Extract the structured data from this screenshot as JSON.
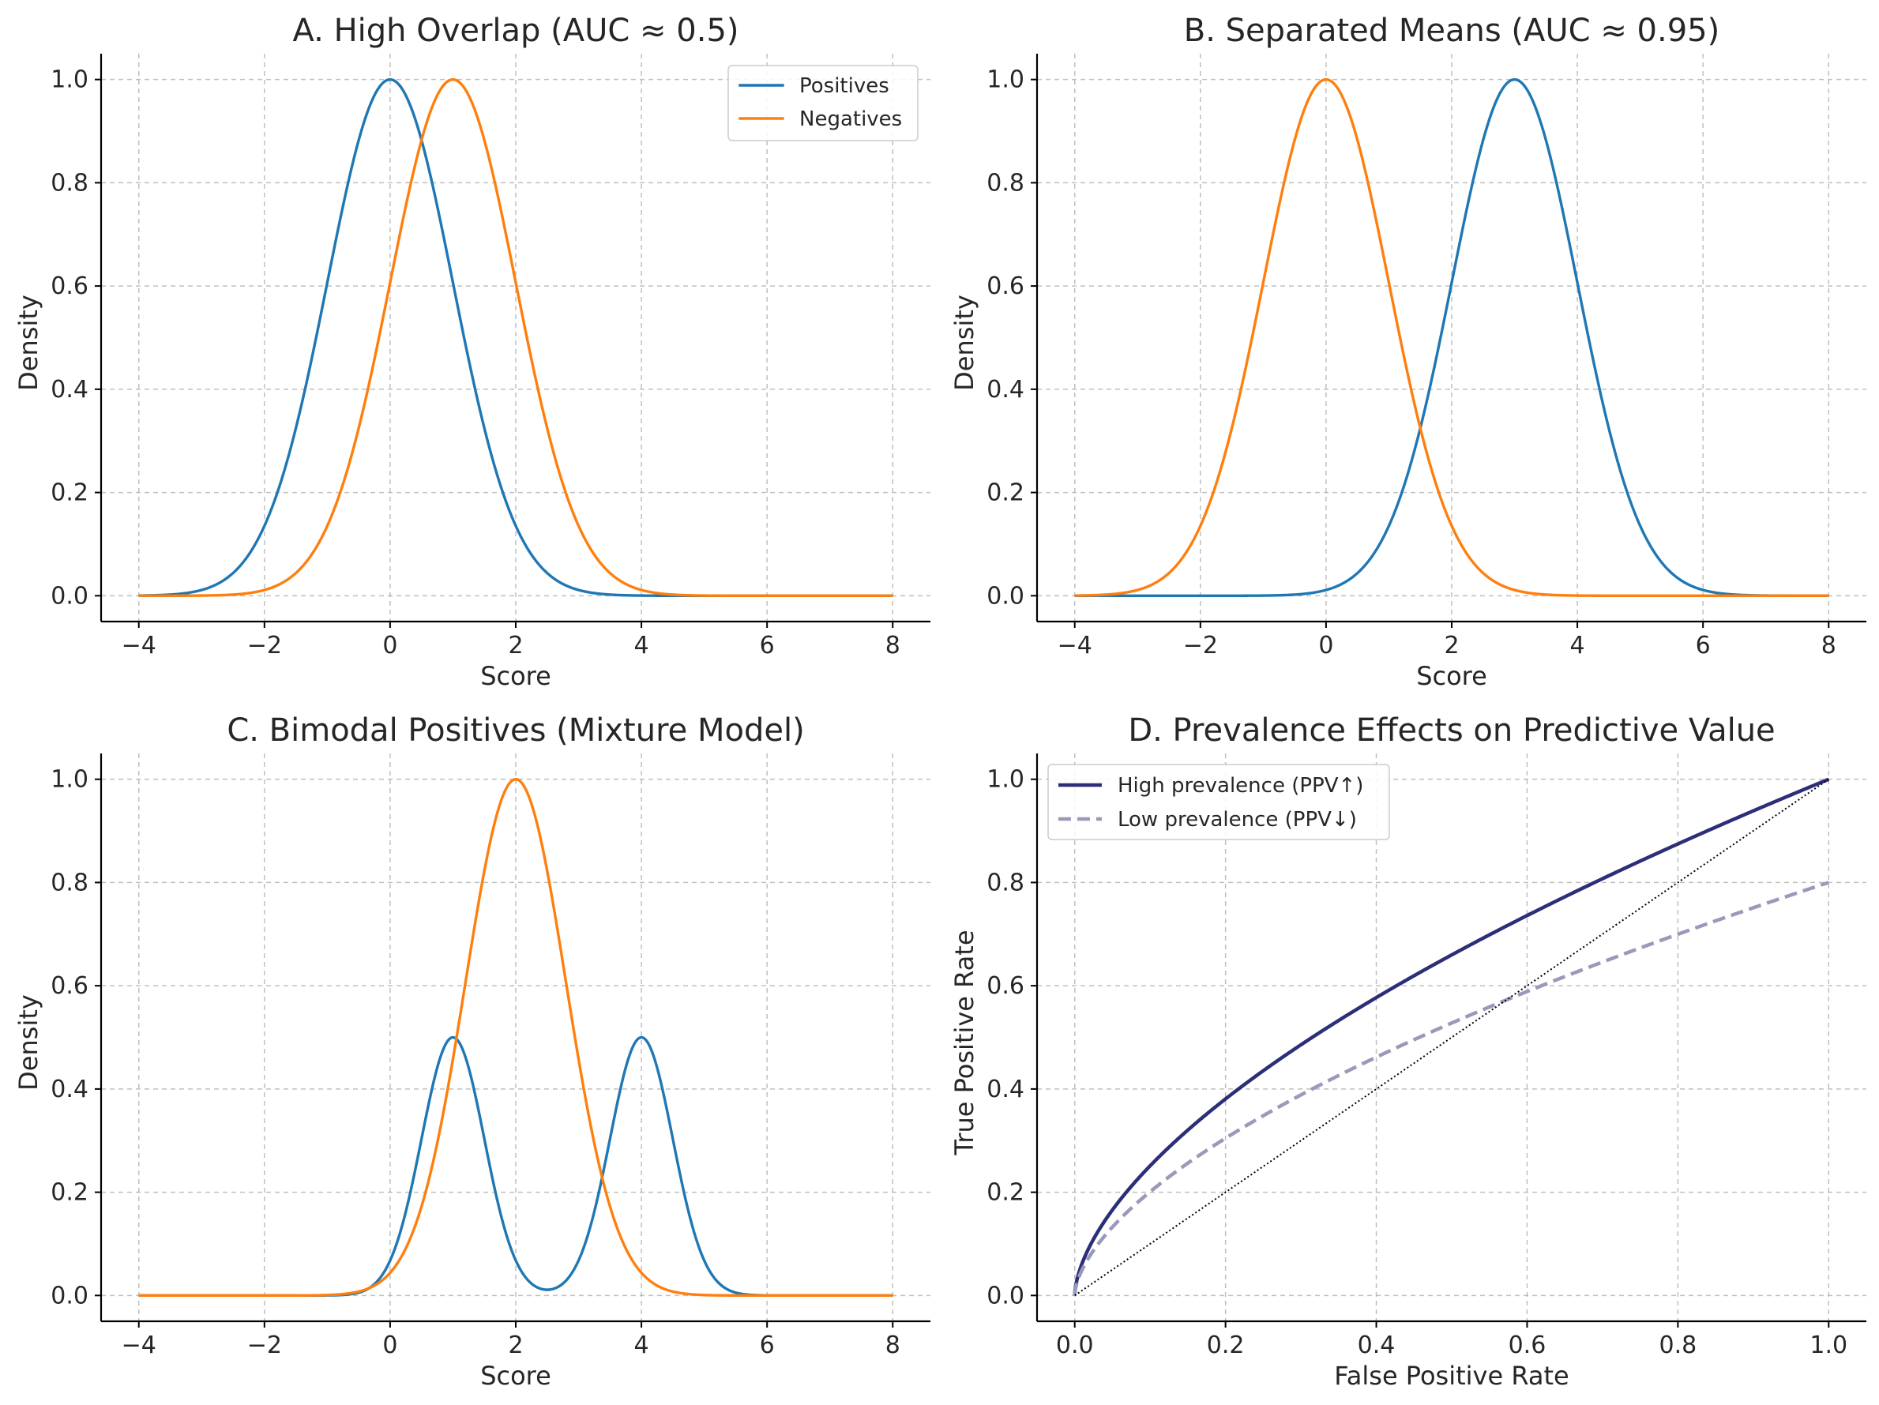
{
  "colors": {
    "positives": "#1f77b4",
    "negatives": "#ff7f0e",
    "high_prev": "#2c2f78",
    "low_prev": "#9b99bb",
    "diagonal": "#000000"
  },
  "chart_data": [
    {
      "id": "A",
      "type": "line",
      "title": "A. High Overlap (AUC ≈ 0.5)",
      "xlabel": "Score",
      "ylabel": "Density",
      "xlim": [
        -4.6,
        8.6
      ],
      "ylim": [
        -0.05,
        1.05
      ],
      "xticks": [
        -4,
        -2,
        0,
        2,
        4,
        6,
        8
      ],
      "xtick_labels": [
        "−4",
        "−2",
        "0",
        "2",
        "4",
        "6",
        "8"
      ],
      "yticks": [
        0.0,
        0.2,
        0.4,
        0.6,
        0.8,
        1.0
      ],
      "ytick_labels": [
        "0.0",
        "0.2",
        "0.4",
        "0.6",
        "0.8",
        "1.0"
      ],
      "grid": true,
      "legend": "top-right",
      "x_range": [
        -4,
        8
      ],
      "series": [
        {
          "name": "Positives",
          "color_key": "positives",
          "curve": "gaussian",
          "components": [
            {
              "mean": 0,
              "sd": 1,
              "peak": 1.0
            }
          ]
        },
        {
          "name": "Negatives",
          "color_key": "negatives",
          "curve": "gaussian",
          "components": [
            {
              "mean": 1,
              "sd": 1,
              "peak": 1.0
            }
          ]
        }
      ]
    },
    {
      "id": "B",
      "type": "line",
      "title": "B. Separated Means (AUC ≈ 0.95)",
      "xlabel": "Score",
      "ylabel": "Density",
      "xlim": [
        -4.6,
        8.6
      ],
      "ylim": [
        -0.05,
        1.05
      ],
      "xticks": [
        -4,
        -2,
        0,
        2,
        4,
        6,
        8
      ],
      "xtick_labels": [
        "−4",
        "−2",
        "0",
        "2",
        "4",
        "6",
        "8"
      ],
      "yticks": [
        0.0,
        0.2,
        0.4,
        0.6,
        0.8,
        1.0
      ],
      "ytick_labels": [
        "0.0",
        "0.2",
        "0.4",
        "0.6",
        "0.8",
        "1.0"
      ],
      "grid": true,
      "x_range": [
        -4,
        8
      ],
      "series": [
        {
          "color_key": "positives",
          "curve": "gaussian",
          "components": [
            {
              "mean": 3,
              "sd": 1,
              "peak": 1.0
            }
          ]
        },
        {
          "color_key": "negatives",
          "curve": "gaussian",
          "components": [
            {
              "mean": 0,
              "sd": 1,
              "peak": 1.0
            }
          ]
        }
      ]
    },
    {
      "id": "C",
      "type": "line",
      "title": "C. Bimodal Positives (Mixture Model)",
      "xlabel": "Score",
      "ylabel": "Density",
      "xlim": [
        -4.6,
        8.6
      ],
      "ylim": [
        -0.05,
        1.05
      ],
      "xticks": [
        -4,
        -2,
        0,
        2,
        4,
        6,
        8
      ],
      "xtick_labels": [
        "−4",
        "−2",
        "0",
        "2",
        "4",
        "6",
        "8"
      ],
      "yticks": [
        0.0,
        0.2,
        0.4,
        0.6,
        0.8,
        1.0
      ],
      "ytick_labels": [
        "0.0",
        "0.2",
        "0.4",
        "0.6",
        "0.8",
        "1.0"
      ],
      "grid": true,
      "x_range": [
        -4,
        8
      ],
      "series": [
        {
          "color_key": "positives",
          "curve": "gaussian",
          "components": [
            {
              "mean": 1,
              "sd": 0.5,
              "peak": 0.5
            },
            {
              "mean": 4,
              "sd": 0.5,
              "peak": 0.5
            }
          ]
        },
        {
          "color_key": "negatives",
          "curve": "gaussian",
          "components": [
            {
              "mean": 2,
              "sd": 0.8,
              "peak": 1.0
            }
          ]
        }
      ]
    },
    {
      "id": "D",
      "type": "line",
      "title": "D. Prevalence Effects on Predictive Value",
      "xlabel": "False Positive Rate",
      "ylabel": "True Positive Rate",
      "xlim": [
        -0.05,
        1.05
      ],
      "ylim": [
        -0.05,
        1.05
      ],
      "xticks": [
        0.0,
        0.2,
        0.4,
        0.6,
        0.8,
        1.0
      ],
      "xtick_labels": [
        "0.0",
        "0.2",
        "0.4",
        "0.6",
        "0.8",
        "1.0"
      ],
      "yticks": [
        0.0,
        0.2,
        0.4,
        0.6,
        0.8,
        1.0
      ],
      "ytick_labels": [
        "0.0",
        "0.2",
        "0.4",
        "0.6",
        "0.8",
        "1.0"
      ],
      "grid": true,
      "legend": "top-left",
      "x_range": [
        0,
        1
      ],
      "series": [
        {
          "name": "High prevalence (PPV↑)",
          "color_key": "high_prev",
          "curve": "power",
          "scale": 1.0,
          "exponent": 0.6,
          "style": "solid"
        },
        {
          "name": "Low prevalence (PPV↓)",
          "color_key": "low_prev",
          "curve": "power",
          "scale": 0.8,
          "exponent": 0.6,
          "style": "dashed"
        },
        {
          "color_key": "diagonal",
          "curve": "linear",
          "style": "dotted"
        }
      ]
    }
  ]
}
